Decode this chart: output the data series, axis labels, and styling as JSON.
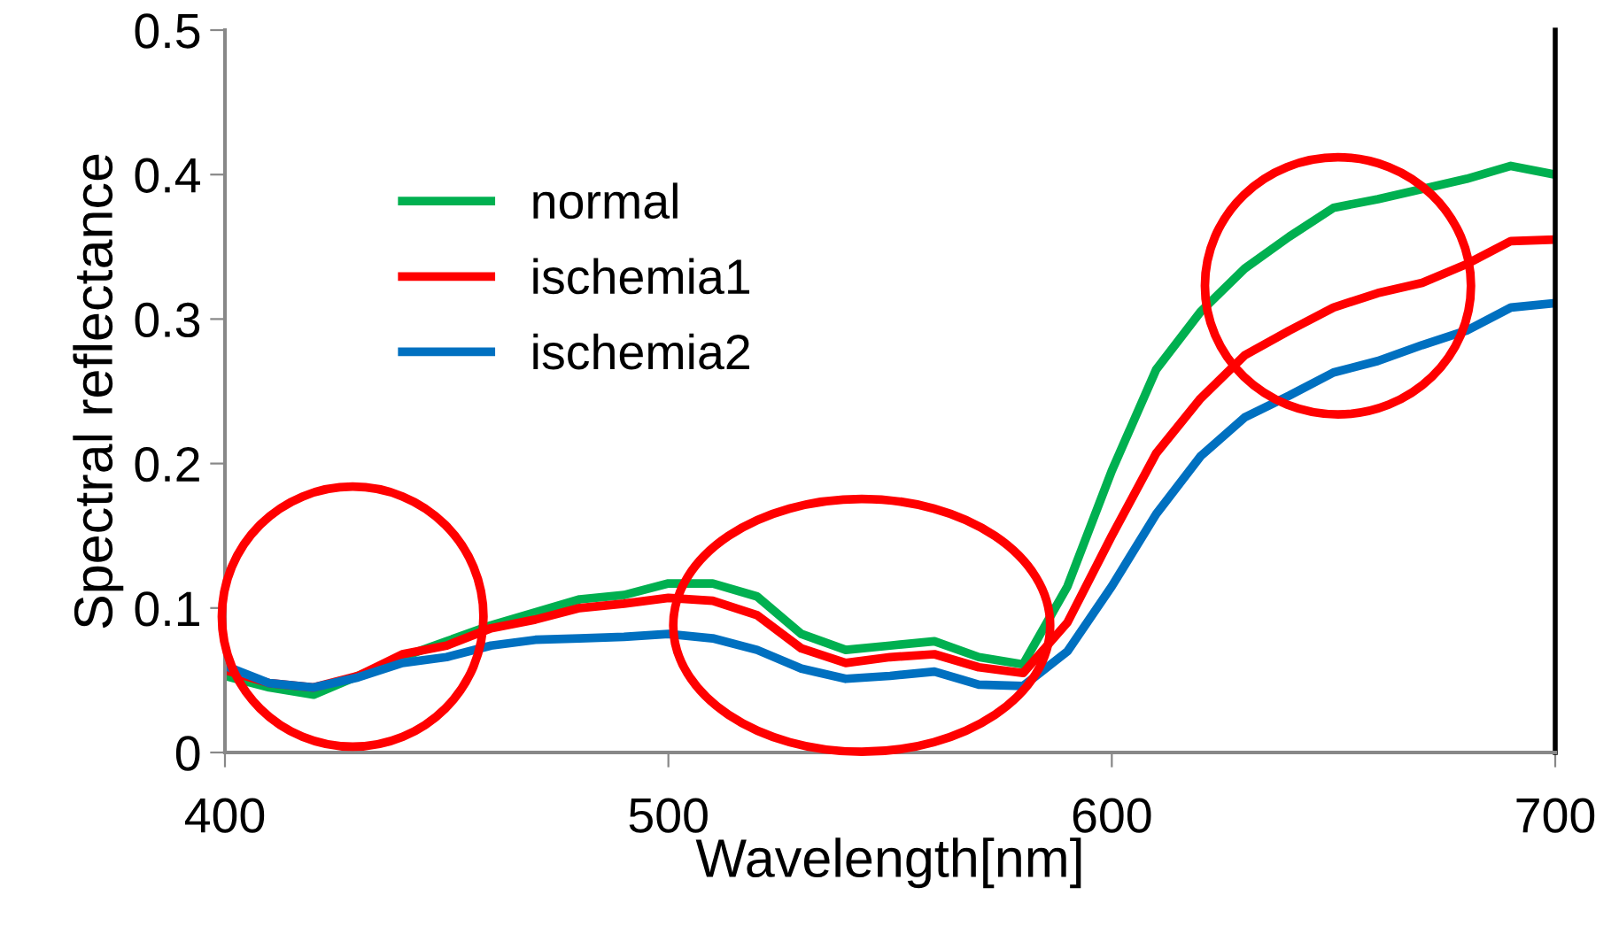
{
  "chart_data": {
    "type": "line",
    "xlabel": "Wavelength[nm]",
    "ylabel": "Spectral reflectance",
    "x": [
      400,
      410,
      420,
      430,
      440,
      450,
      460,
      470,
      480,
      490,
      500,
      510,
      520,
      530,
      540,
      550,
      560,
      570,
      580,
      590,
      600,
      610,
      620,
      630,
      640,
      650,
      660,
      670,
      680,
      690,
      700
    ],
    "series": [
      {
        "name": "normal",
        "color": "#00b050",
        "values": [
          0.053,
          0.045,
          0.04,
          0.053,
          0.066,
          0.077,
          0.088,
          0.097,
          0.106,
          0.109,
          0.117,
          0.117,
          0.108,
          0.082,
          0.071,
          0.074,
          0.077,
          0.066,
          0.061,
          0.115,
          0.195,
          0.265,
          0.305,
          0.335,
          0.357,
          0.377,
          0.383,
          0.39,
          0.397,
          0.406,
          0.4
        ]
      },
      {
        "name": "ischemia1",
        "color": "#ff0000",
        "values": [
          0.057,
          0.048,
          0.045,
          0.053,
          0.068,
          0.074,
          0.086,
          0.092,
          0.1,
          0.103,
          0.107,
          0.105,
          0.095,
          0.072,
          0.062,
          0.066,
          0.068,
          0.059,
          0.055,
          0.09,
          0.15,
          0.207,
          0.245,
          0.275,
          0.292,
          0.308,
          0.318,
          0.325,
          0.338,
          0.354,
          0.355
        ]
      },
      {
        "name": "ischemia2",
        "color": "#0070c0",
        "values": [
          0.06,
          0.048,
          0.045,
          0.052,
          0.062,
          0.066,
          0.074,
          0.078,
          0.079,
          0.08,
          0.082,
          0.079,
          0.071,
          0.058,
          0.051,
          0.053,
          0.056,
          0.047,
          0.046,
          0.07,
          0.115,
          0.165,
          0.205,
          0.232,
          0.247,
          0.263,
          0.271,
          0.282,
          0.292,
          0.308,
          0.311
        ]
      }
    ],
    "xlim": [
      400,
      700
    ],
    "xticks": [
      400,
      500,
      600,
      700
    ],
    "ylim": [
      0,
      0.5
    ],
    "yticks": [
      0,
      0.1,
      0.2,
      0.3,
      0.4,
      0.5
    ],
    "grid": false,
    "legend": "top left",
    "marker": "none",
    "line_style": "solid"
  }
}
